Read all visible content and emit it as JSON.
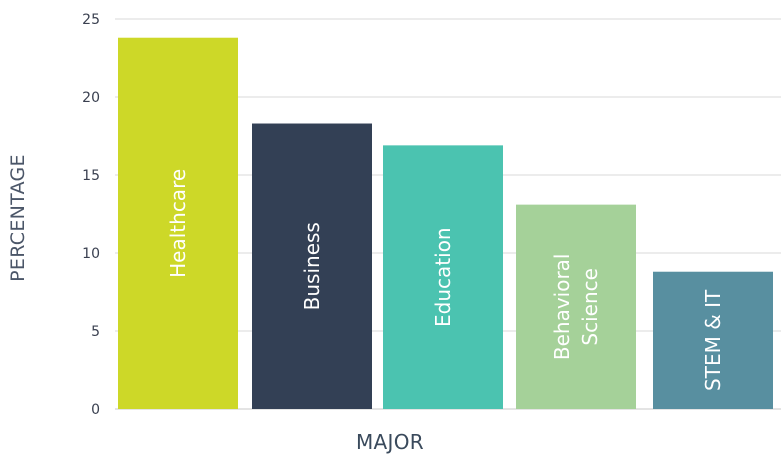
{
  "chart_data": {
    "type": "bar",
    "xlabel": "MAJOR",
    "ylabel": "PERCENTAGE",
    "ylim": [
      0,
      25
    ],
    "yticks": [
      0,
      5,
      10,
      15,
      20,
      25
    ],
    "grid": true,
    "bars": [
      {
        "label": [
          "Healthcare"
        ],
        "value": 23.8,
        "color": "#cdd828"
      },
      {
        "label": [
          "Business"
        ],
        "value": 18.3,
        "color": "#334055"
      },
      {
        "label": [
          "Education"
        ],
        "value": 16.9,
        "color": "#4bc3b0"
      },
      {
        "label": [
          "Behavioral",
          "Science"
        ],
        "value": 13.1,
        "color": "#a5d199"
      },
      {
        "label": [
          "STEM & IT"
        ],
        "value": 8.8,
        "color": "#588fa0"
      }
    ]
  }
}
